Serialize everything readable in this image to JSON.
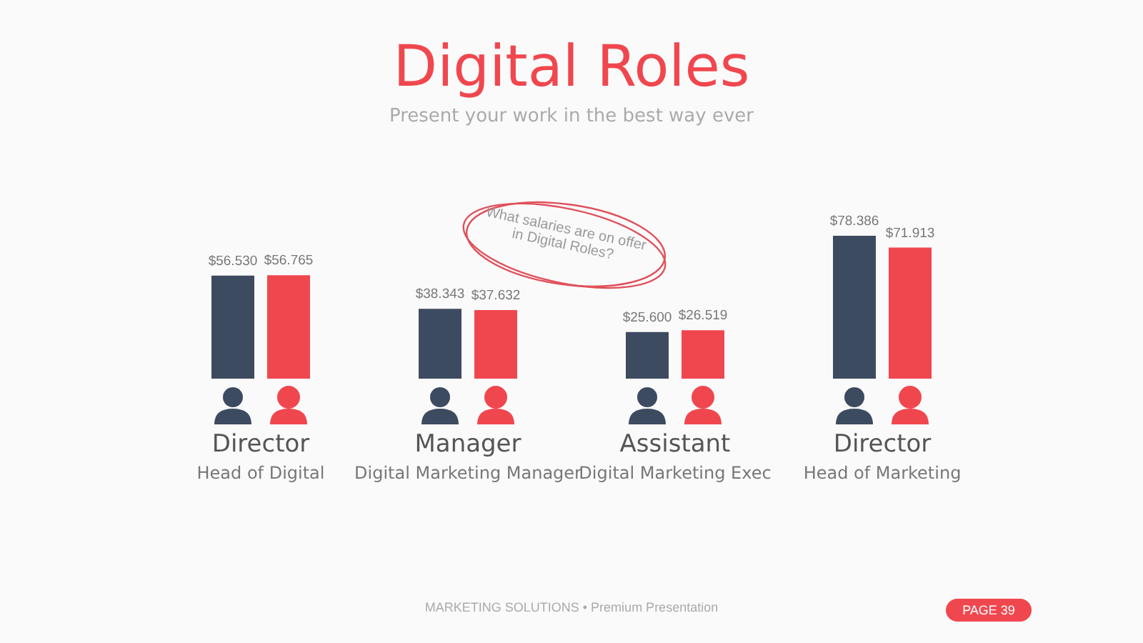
{
  "chart_data": {
    "type": "bar",
    "title": "Digital Roles",
    "subtitle": "Present your work in the best way ever",
    "categories": [
      "Director\nHead of Digital",
      "Manager\nDigital Marketing Manager",
      "Assistant\nDigital Marketing Exec",
      "Director\nHead of Marketing"
    ],
    "series": [
      {
        "color": "#3d4b60",
        "values": [
          56530,
          38343,
          25600,
          78386
        ],
        "value_labels": [
          "$56.530",
          "$38.343",
          "$25.600",
          "$78.386"
        ]
      },
      {
        "color": "#f0474f",
        "values": [
          56765,
          37632,
          26519,
          71913
        ],
        "value_labels": [
          "$56.765",
          "$37.632",
          "$26.519",
          "$71.913"
        ]
      }
    ],
    "annotations": [
      "What salaries are on offer\nin Digital Roles?",
      "MARKETING SOLUTIONS • Premium Presentation",
      "PAGE 39"
    ],
    "grid": false
  }
}
